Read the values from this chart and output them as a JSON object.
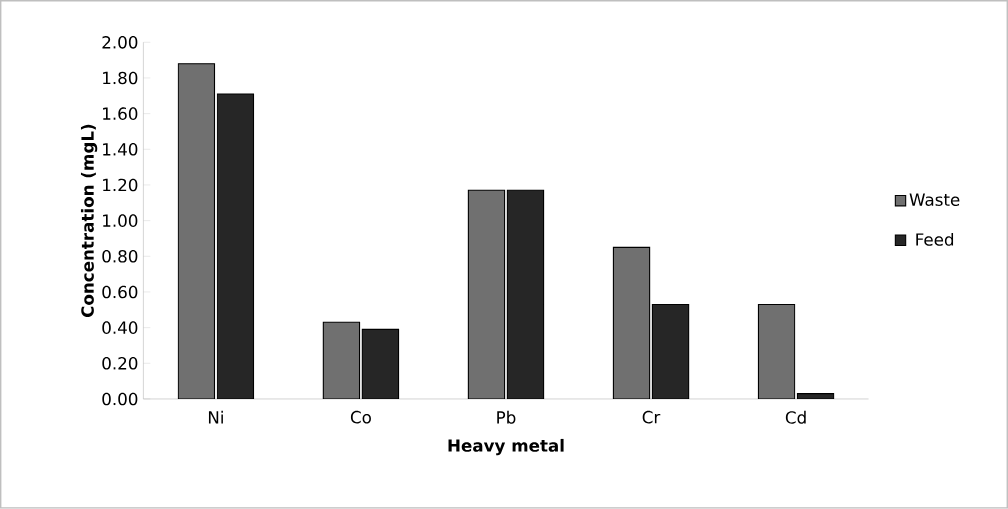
{
  "chart_data": {
    "type": "bar",
    "xlabel": "Heavy metal",
    "ylabel": "Concentration (mgL)",
    "categories": [
      "Ni",
      "Co",
      "Pb",
      "Cr",
      "Cd"
    ],
    "series": [
      {
        "name": "Waste",
        "color": "#707070",
        "values": [
          1.88,
          0.43,
          1.17,
          0.85,
          0.53
        ]
      },
      {
        "name": "Feed",
        "color": "#262626",
        "values": [
          1.71,
          0.39,
          1.17,
          0.53,
          0.03
        ]
      }
    ],
    "ylim": [
      0,
      2
    ],
    "yticks": [
      {
        "value": 0,
        "label": "0.00"
      },
      {
        "value": 0.2,
        "label": "0.20"
      },
      {
        "value": 0.4,
        "label": "0.40"
      },
      {
        "value": 0.6,
        "label": "0.60"
      },
      {
        "value": 0.8,
        "label": "0.80"
      },
      {
        "value": 1.0,
        "label": "1.00"
      },
      {
        "value": 1.2,
        "label": "1.20"
      },
      {
        "value": 1.4,
        "label": "1.40"
      },
      {
        "value": 1.6,
        "label": "1.60"
      },
      {
        "value": 1.8,
        "label": "1.80"
      },
      {
        "value": 2.0,
        "label": "2.00"
      }
    ],
    "grid": false,
    "legend": "right"
  }
}
